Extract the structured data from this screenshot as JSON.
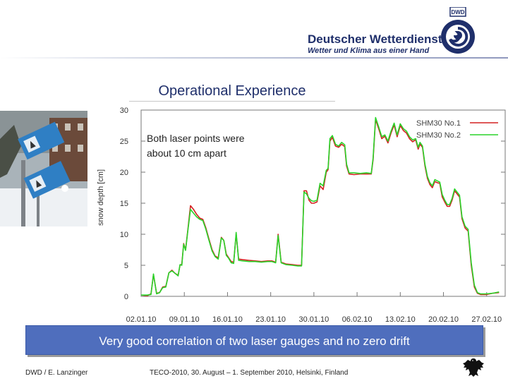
{
  "header": {
    "org_name": "Deutscher Wetterdienst",
    "org_tagline": "Wetter und Klima aus einer Hand",
    "logo_badge": "DWD"
  },
  "slide": {
    "title": "Operational Experience"
  },
  "chart_data": {
    "type": "line",
    "annotation": "Both laser points were about 10 cm apart",
    "ylabel": "snow depth [cm]",
    "xlabel": "",
    "ylim": [
      0,
      30
    ],
    "yticks": [
      0,
      5,
      10,
      15,
      20,
      25,
      30
    ],
    "xticks": [
      "02.01.10",
      "09.01.10",
      "16.01.10",
      "23.01.10",
      "30.01.10",
      "06.02.10",
      "13.02.10",
      "20.02.10",
      "27.02.10"
    ],
    "x_start": "02.01.10",
    "x_end": "02.03.10",
    "legend_position": "top-right",
    "grid": false,
    "series": [
      {
        "name": "SHM30 No.1",
        "color": "#d42020",
        "points": [
          [
            0,
            0.2
          ],
          [
            1,
            0.1
          ],
          [
            1.6,
            0.4
          ],
          [
            2.0,
            3.5
          ],
          [
            2.5,
            0.5
          ],
          [
            3,
            0.6
          ],
          [
            3.5,
            1.5
          ],
          [
            4,
            1.6
          ],
          [
            4.5,
            3.8
          ],
          [
            5,
            4.2
          ],
          [
            5.5,
            3.7
          ],
          [
            6,
            3.4
          ],
          [
            6.3,
            5
          ],
          [
            6.6,
            5.2
          ],
          [
            6.9,
            8.5
          ],
          [
            7.2,
            7.5
          ],
          [
            7.6,
            11
          ],
          [
            8.0,
            14.6
          ],
          [
            8.5,
            14.0
          ],
          [
            9,
            13.2
          ],
          [
            9.5,
            12.6
          ],
          [
            10,
            12.4
          ],
          [
            10.5,
            11.0
          ],
          [
            11,
            9.2
          ],
          [
            11.5,
            7.5
          ],
          [
            12,
            6.5
          ],
          [
            12.5,
            6.2
          ],
          [
            13,
            9.5
          ],
          [
            13.4,
            9.0
          ],
          [
            13.8,
            6.8
          ],
          [
            14.2,
            6.2
          ],
          [
            14.6,
            5.6
          ],
          [
            15,
            5.5
          ],
          [
            15.4,
            10.0
          ],
          [
            15.8,
            6.0
          ],
          [
            16.5,
            5.9
          ],
          [
            17.5,
            5.8
          ],
          [
            18.5,
            5.7
          ],
          [
            19.5,
            5.6
          ],
          [
            20.5,
            5.7
          ],
          [
            21.2,
            5.7
          ],
          [
            21.8,
            5.5
          ],
          [
            22.2,
            10.0
          ],
          [
            22.7,
            5.5
          ],
          [
            23.5,
            5.2
          ],
          [
            24.5,
            5.1
          ],
          [
            25.4,
            5.0
          ],
          [
            26.0,
            5.0
          ],
          [
            26.4,
            17.0
          ],
          [
            26.8,
            17.0
          ],
          [
            27.2,
            15.5
          ],
          [
            27.6,
            15.0
          ],
          [
            28,
            15.0
          ],
          [
            28.5,
            15.2
          ],
          [
            29,
            17.8
          ],
          [
            29.5,
            17.2
          ],
          [
            30,
            20.0
          ],
          [
            30.3,
            20.4
          ],
          [
            30.6,
            25.0
          ],
          [
            31,
            25.6
          ],
          [
            31.5,
            24.2
          ],
          [
            32,
            24.0
          ],
          [
            32.5,
            24.5
          ],
          [
            33,
            24.1
          ],
          [
            33.3,
            21.0
          ],
          [
            33.7,
            19.7
          ],
          [
            34.5,
            19.6
          ],
          [
            35.5,
            19.7
          ],
          [
            36.5,
            19.7
          ],
          [
            37.3,
            19.7
          ],
          [
            37.6,
            22.0
          ],
          [
            38,
            28.5
          ],
          [
            38.5,
            27.0
          ],
          [
            39,
            25.4
          ],
          [
            39.5,
            25.8
          ],
          [
            40,
            24.7
          ],
          [
            40.5,
            26.3
          ],
          [
            41,
            27.6
          ],
          [
            41.5,
            25.7
          ],
          [
            42,
            27.5
          ],
          [
            42.5,
            26.7
          ],
          [
            43,
            26.3
          ],
          [
            43.5,
            25.4
          ],
          [
            44,
            24.9
          ],
          [
            44.5,
            25.2
          ],
          [
            44.9,
            23.7
          ],
          [
            45.2,
            24.5
          ],
          [
            45.6,
            24.0
          ],
          [
            46.0,
            21.0
          ],
          [
            46.4,
            19.0
          ],
          [
            46.8,
            18.0
          ],
          [
            47.2,
            17.5
          ],
          [
            47.6,
            18.5
          ],
          [
            48.0,
            18.3
          ],
          [
            48.4,
            18.2
          ],
          [
            48.8,
            16.0
          ],
          [
            49.2,
            15.2
          ],
          [
            49.6,
            14.5
          ],
          [
            50,
            14.5
          ],
          [
            50.4,
            15.5
          ],
          [
            50.8,
            17.0
          ],
          [
            51.2,
            16.5
          ],
          [
            51.6,
            16.0
          ],
          [
            52.0,
            12.5
          ],
          [
            52.5,
            11.0
          ],
          [
            53.0,
            10.5
          ],
          [
            53.5,
            5.0
          ],
          [
            54.0,
            1.5
          ],
          [
            54.5,
            0.5
          ],
          [
            55,
            0.3
          ],
          [
            56,
            0.3
          ],
          [
            57,
            0.5
          ],
          [
            58,
            0.6
          ]
        ]
      },
      {
        "name": "SHM30 No.2",
        "color": "#2ad42a",
        "points": [
          [
            0,
            0.2
          ],
          [
            1,
            0.2
          ],
          [
            1.6,
            0.3
          ],
          [
            2.0,
            3.6
          ],
          [
            2.5,
            0.4
          ],
          [
            3,
            0.6
          ],
          [
            3.5,
            1.4
          ],
          [
            4,
            1.5
          ],
          [
            4.5,
            3.8
          ],
          [
            5,
            4.1
          ],
          [
            5.5,
            3.7
          ],
          [
            6,
            3.3
          ],
          [
            6.3,
            5.1
          ],
          [
            6.6,
            5.0
          ],
          [
            6.9,
            8.4
          ],
          [
            7.2,
            7.4
          ],
          [
            7.6,
            10.8
          ],
          [
            8.0,
            14.0
          ],
          [
            8.5,
            13.4
          ],
          [
            9,
            12.8
          ],
          [
            9.5,
            12.4
          ],
          [
            10,
            12.2
          ],
          [
            10.5,
            10.8
          ],
          [
            11,
            9.0
          ],
          [
            11.5,
            7.3
          ],
          [
            12,
            6.4
          ],
          [
            12.5,
            6.0
          ],
          [
            13,
            9.4
          ],
          [
            13.4,
            9.0
          ],
          [
            13.8,
            6.6
          ],
          [
            14.2,
            6.1
          ],
          [
            14.6,
            5.4
          ],
          [
            15,
            5.3
          ],
          [
            15.4,
            10.3
          ],
          [
            15.8,
            5.8
          ],
          [
            16.5,
            5.7
          ],
          [
            17.5,
            5.6
          ],
          [
            18.5,
            5.6
          ],
          [
            19.5,
            5.5
          ],
          [
            20.5,
            5.6
          ],
          [
            21.2,
            5.6
          ],
          [
            21.8,
            5.4
          ],
          [
            22.2,
            9.8
          ],
          [
            22.7,
            5.4
          ],
          [
            23.5,
            5.1
          ],
          [
            24.5,
            5.0
          ],
          [
            25.4,
            4.9
          ],
          [
            26.0,
            4.9
          ],
          [
            26.4,
            16.8
          ],
          [
            26.8,
            16.5
          ],
          [
            27.2,
            15.8
          ],
          [
            27.6,
            15.4
          ],
          [
            28,
            15.3
          ],
          [
            28.5,
            15.5
          ],
          [
            29,
            18.2
          ],
          [
            29.5,
            17.8
          ],
          [
            30,
            20.3
          ],
          [
            30.3,
            20.6
          ],
          [
            30.6,
            25.4
          ],
          [
            31,
            25.9
          ],
          [
            31.5,
            24.5
          ],
          [
            32,
            24.2
          ],
          [
            32.5,
            24.8
          ],
          [
            33,
            24.4
          ],
          [
            33.3,
            21.3
          ],
          [
            33.7,
            19.9
          ],
          [
            34.5,
            19.9
          ],
          [
            35.5,
            19.8
          ],
          [
            36.5,
            19.9
          ],
          [
            37.3,
            19.8
          ],
          [
            37.6,
            22.3
          ],
          [
            38,
            28.8
          ],
          [
            38.5,
            27.3
          ],
          [
            39,
            25.7
          ],
          [
            39.5,
            26.0
          ],
          [
            40,
            25.0
          ],
          [
            40.5,
            26.6
          ],
          [
            41,
            27.9
          ],
          [
            41.5,
            26.0
          ],
          [
            42,
            27.8
          ],
          [
            42.5,
            27.0
          ],
          [
            43,
            26.6
          ],
          [
            43.5,
            25.7
          ],
          [
            44,
            25.2
          ],
          [
            44.5,
            25.4
          ],
          [
            44.9,
            24.0
          ],
          [
            45.2,
            24.8
          ],
          [
            45.6,
            24.2
          ],
          [
            46.0,
            21.3
          ],
          [
            46.4,
            19.3
          ],
          [
            46.8,
            18.3
          ],
          [
            47.2,
            17.8
          ],
          [
            47.6,
            18.8
          ],
          [
            48.0,
            18.6
          ],
          [
            48.4,
            18.4
          ],
          [
            48.8,
            16.4
          ],
          [
            49.2,
            15.5
          ],
          [
            49.6,
            14.8
          ],
          [
            50,
            14.8
          ],
          [
            50.4,
            15.8
          ],
          [
            50.8,
            17.3
          ],
          [
            51.2,
            16.8
          ],
          [
            51.6,
            16.3
          ],
          [
            52.0,
            12.8
          ],
          [
            52.5,
            11.3
          ],
          [
            53.0,
            10.8
          ],
          [
            53.5,
            5.4
          ],
          [
            54.0,
            1.8
          ],
          [
            54.5,
            0.6
          ],
          [
            55,
            0.4
          ],
          [
            56,
            0.4
          ],
          [
            57,
            0.5
          ],
          [
            58,
            0.7
          ]
        ]
      }
    ]
  },
  "banner": {
    "text": "Very good correlation of two laser gauges and no zero drift"
  },
  "footer": {
    "author": "DWD / E. Lanzinger",
    "event": "TECO-2010, 30. August – 1. September 2010, Helsinki, Finland"
  },
  "colors": {
    "primary": "#1f2f6b",
    "banner": "#4f6ebd",
    "series1": "#d42020",
    "series2": "#2ad42a"
  }
}
